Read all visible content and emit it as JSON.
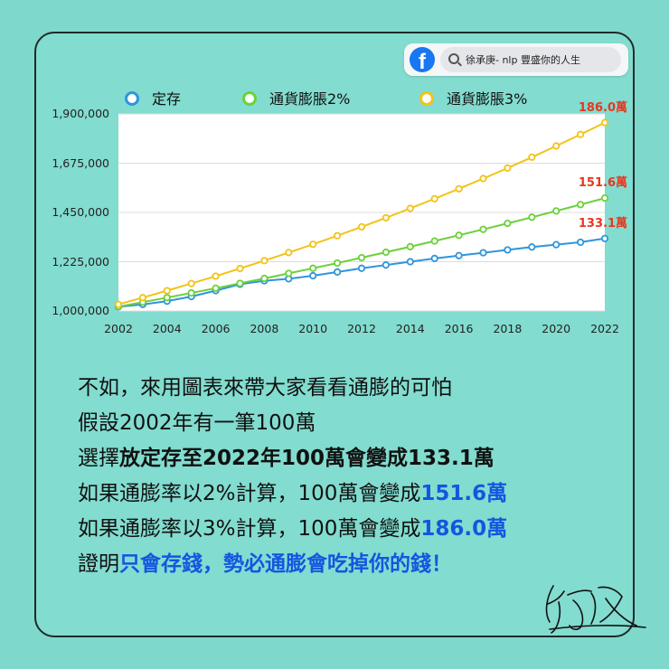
{
  "facebook": {
    "search_text": "徐承庚- nlp 豐盛你的人生"
  },
  "chart_data": {
    "type": "line",
    "title": "",
    "xlabel": "",
    "ylabel": "",
    "x": [
      2002,
      2003,
      2004,
      2005,
      2006,
      2007,
      2008,
      2009,
      2010,
      2011,
      2012,
      2013,
      2014,
      2015,
      2016,
      2017,
      2018,
      2019,
      2020,
      2021,
      2022
    ],
    "xticks": [
      "2002",
      "2004",
      "2006",
      "2008",
      "2010",
      "2012",
      "2014",
      "2016",
      "2018",
      "2020",
      "2022"
    ],
    "yticks": [
      "1,000,000",
      "1,225,000",
      "1,450,000",
      "1,675,000",
      "1,900,000"
    ],
    "ylim": [
      1000000,
      1900000
    ],
    "xlim": [
      2002,
      2022
    ],
    "grid": true,
    "legend_position": "top",
    "series": [
      {
        "name": "定存",
        "color": "#2f95dc",
        "end_label": "133.1萬",
        "values": [
          1019000,
          1030000,
          1045000,
          1066000,
          1093000,
          1122000,
          1138000,
          1147000,
          1161000,
          1178000,
          1195000,
          1210000,
          1225000,
          1240000,
          1253000,
          1266000,
          1279000,
          1292000,
          1303000,
          1314000,
          1331000
        ]
      },
      {
        "name": "通貨膨脹2%",
        "color": "#6bd13a",
        "end_label": "151.6萬",
        "values": [
          1020000,
          1040400,
          1061208,
          1082432,
          1104081,
          1126162,
          1148686,
          1171659,
          1195093,
          1218994,
          1243374,
          1268242,
          1293607,
          1319479,
          1345868,
          1372786,
          1400241,
          1428246,
          1456811,
          1485947,
          1515666
        ]
      },
      {
        "name": "通貨膨脹3%",
        "color": "#f2c318",
        "end_label": "186.0萬",
        "values": [
          1030000,
          1060900,
          1092727,
          1125509,
          1159274,
          1194052,
          1229874,
          1266770,
          1304773,
          1343916,
          1384234,
          1425761,
          1468534,
          1512590,
          1557967,
          1604706,
          1652848,
          1702433,
          1753506,
          1806111,
          1860295
        ]
      }
    ]
  },
  "text": {
    "line1": "不如，來用圖表來帶大家看看通膨的可怕",
    "line2": "假設2002年有一筆100萬",
    "line3_prefix": "選擇",
    "line3_bold": "放定存至2022年100萬會變成133.1萬",
    "line4_prefix": "如果通膨率以2%計算，100萬會變成",
    "line4_value": "151.6萬",
    "line5_prefix": "如果通膨率以3%計算，100萬會變成",
    "line5_value": "186.0萬",
    "line6_prefix": "證明",
    "line6_bold": "只會存錢，勢必通膨會吃掉你的錢！"
  }
}
